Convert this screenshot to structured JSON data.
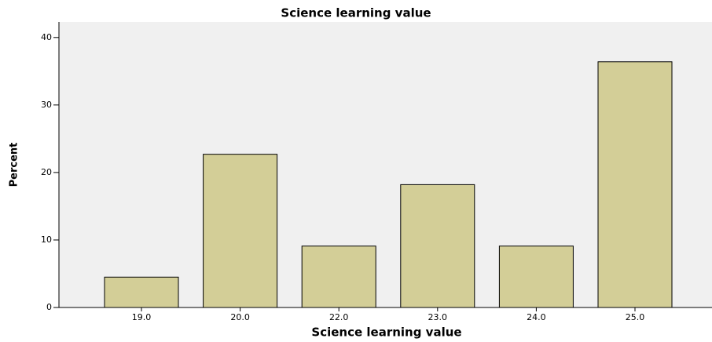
{
  "chart_data": {
    "type": "bar",
    "title": "Science learning value",
    "x_label": "Science learning value",
    "y_label": "Percent",
    "categories": [
      "19.0",
      "20.0",
      "22.0",
      "23.0",
      "24.0",
      "25.0"
    ],
    "values": [
      4.5,
      22.7,
      9.1,
      18.2,
      9.1,
      36.4
    ],
    "color": "#d3ce97",
    "ylim": [
      0,
      42.3
    ],
    "yticks": [
      0,
      10,
      20,
      30,
      40
    ],
    "grid": false
  }
}
